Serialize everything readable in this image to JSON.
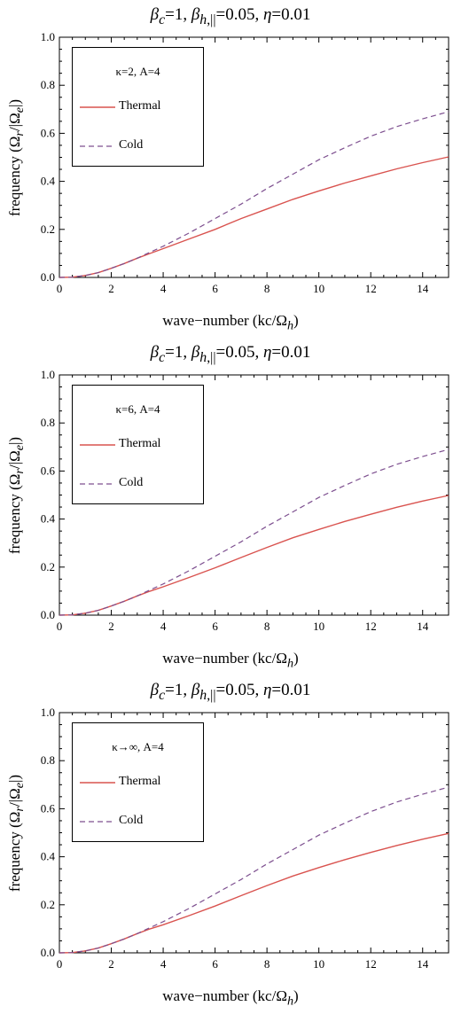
{
  "chart_data": [
    {
      "type": "line",
      "title": "β_c=1, β_h,||=0.05, η=0.01",
      "xlabel": "wave−number (kc/Ω_h)",
      "ylabel": "frequency (Ω_r/|Ω_e|)",
      "xlim": [
        0,
        15
      ],
      "ylim": [
        0,
        1.0
      ],
      "xticks": [
        "0",
        "2",
        "4",
        "6",
        "8",
        "10",
        "12",
        "14"
      ],
      "yticks": [
        "0.0",
        "0.2",
        "0.4",
        "0.6",
        "0.8",
        "1.0"
      ],
      "grid": false,
      "legend_position": "top-left",
      "legend_title": "κ=2, A=4",
      "x": [
        0,
        0.5,
        1,
        1.5,
        2,
        2.5,
        3,
        3.5,
        4,
        5,
        6,
        7,
        8,
        9,
        10,
        11,
        12,
        13,
        14,
        15
      ],
      "series": [
        {
          "name": "Thermal",
          "style": "solid",
          "color": "#d9534f",
          "values": [
            0,
            0.001,
            0.008,
            0.02,
            0.038,
            0.058,
            0.08,
            0.1,
            0.12,
            0.16,
            0.2,
            0.245,
            0.285,
            0.325,
            0.36,
            0.393,
            0.423,
            0.452,
            0.478,
            0.502
          ]
        },
        {
          "name": "Cold",
          "style": "dashed",
          "color": "#7d4f8f",
          "values": [
            0,
            0.001,
            0.008,
            0.02,
            0.038,
            0.058,
            0.08,
            0.105,
            0.13,
            0.185,
            0.245,
            0.305,
            0.37,
            0.43,
            0.49,
            0.54,
            0.588,
            0.628,
            0.66,
            0.69
          ]
        }
      ]
    },
    {
      "type": "line",
      "title": "β_c=1, β_h,||=0.05, η=0.01",
      "xlabel": "wave−number (kc/Ω_h)",
      "ylabel": "frequency (Ω_r/|Ω_e|)",
      "xlim": [
        0,
        15
      ],
      "ylim": [
        0,
        1.0
      ],
      "xticks": [
        "0",
        "2",
        "4",
        "6",
        "8",
        "10",
        "12",
        "14"
      ],
      "yticks": [
        "0.0",
        "0.2",
        "0.4",
        "0.6",
        "0.8",
        "1.0"
      ],
      "grid": false,
      "legend_position": "top-left",
      "legend_title": "κ=6, A=4",
      "x": [
        0,
        0.5,
        1,
        1.5,
        2,
        2.5,
        3,
        3.5,
        4,
        5,
        6,
        7,
        8,
        9,
        10,
        11,
        12,
        13,
        14,
        15
      ],
      "series": [
        {
          "name": "Thermal",
          "style": "solid",
          "color": "#d9534f",
          "values": [
            0,
            0.001,
            0.008,
            0.02,
            0.038,
            0.058,
            0.08,
            0.1,
            0.118,
            0.157,
            0.197,
            0.24,
            0.282,
            0.322,
            0.357,
            0.39,
            0.42,
            0.449,
            0.475,
            0.498
          ]
        },
        {
          "name": "Cold",
          "style": "dashed",
          "color": "#7d4f8f",
          "values": [
            0,
            0.001,
            0.008,
            0.02,
            0.038,
            0.058,
            0.08,
            0.105,
            0.13,
            0.185,
            0.245,
            0.305,
            0.37,
            0.43,
            0.49,
            0.54,
            0.588,
            0.628,
            0.66,
            0.69
          ]
        }
      ]
    },
    {
      "type": "line",
      "title": "β_c=1, β_h,||=0.05, η=0.01",
      "xlabel": "wave−number (kc/Ω_h)",
      "ylabel": "frequency (Ω_r/|Ω_e|)",
      "xlim": [
        0,
        15
      ],
      "ylim": [
        0,
        1.0
      ],
      "xticks": [
        "0",
        "2",
        "4",
        "6",
        "8",
        "10",
        "12",
        "14"
      ],
      "yticks": [
        "0.0",
        "0.2",
        "0.4",
        "0.6",
        "0.8",
        "1.0"
      ],
      "grid": false,
      "legend_position": "top-left",
      "legend_title": "κ→∞, A=4",
      "x": [
        0,
        0.5,
        1,
        1.5,
        2,
        2.5,
        3,
        3.5,
        4,
        5,
        6,
        7,
        8,
        9,
        10,
        11,
        12,
        13,
        14,
        15
      ],
      "series": [
        {
          "name": "Thermal",
          "style": "solid",
          "color": "#d9534f",
          "values": [
            0,
            0.001,
            0.008,
            0.02,
            0.038,
            0.058,
            0.08,
            0.1,
            0.117,
            0.155,
            0.195,
            0.238,
            0.28,
            0.32,
            0.355,
            0.388,
            0.418,
            0.447,
            0.473,
            0.497
          ]
        },
        {
          "name": "Cold",
          "style": "dashed",
          "color": "#7d4f8f",
          "values": [
            0,
            0.001,
            0.008,
            0.02,
            0.038,
            0.058,
            0.08,
            0.105,
            0.13,
            0.185,
            0.245,
            0.305,
            0.37,
            0.43,
            0.49,
            0.54,
            0.588,
            0.628,
            0.66,
            0.69
          ]
        }
      ]
    }
  ]
}
